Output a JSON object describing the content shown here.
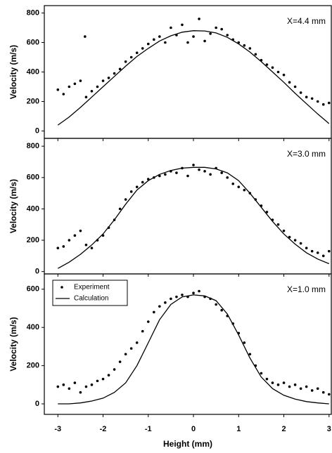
{
  "chart_data": [
    {
      "type": "scatter",
      "annotation": "X=4.4 mm",
      "ylabel": "Velocity (m/s)",
      "xlim": [
        -3.3,
        3.05
      ],
      "xticks": [
        -3,
        -2,
        -1,
        0,
        1,
        2,
        3
      ],
      "ylim": [
        -50,
        850
      ],
      "yticks": [
        0,
        200,
        400,
        600,
        800
      ],
      "series": [
        {
          "color": "#000000",
          "marker": "dot",
          "x": [
            -3,
            -2.875,
            -2.75,
            -2.625,
            -2.5,
            -2.375,
            -2.25,
            -2.125,
            -2,
            -1.875,
            -1.75,
            -1.625,
            -1.5,
            -1.375,
            -1.25,
            -1.125,
            -1,
            -0.875,
            -0.75,
            -0.625,
            -0.5,
            -0.375,
            -0.25,
            -0.125,
            0,
            0.125,
            0.25,
            0.375,
            0.5,
            0.625,
            0.75,
            0.875,
            1,
            1.125,
            1.25,
            1.375,
            1.5,
            1.625,
            1.75,
            1.875,
            2,
            2.125,
            2.25,
            2.375,
            2.5,
            2.625,
            2.75,
            2.875,
            3,
            -2.4
          ],
          "values": [
            280,
            250,
            300,
            320,
            340,
            230,
            270,
            300,
            340,
            360,
            390,
            420,
            470,
            500,
            530,
            560,
            590,
            620,
            640,
            600,
            700,
            650,
            720,
            600,
            640,
            760,
            610,
            660,
            700,
            690,
            650,
            620,
            600,
            580,
            560,
            520,
            480,
            450,
            430,
            400,
            380,
            330,
            300,
            260,
            230,
            220,
            200,
            180,
            190,
            640
          ]
        },
        {
          "color": "#000000",
          "marker": "line",
          "x": [
            -3,
            -2.75,
            -2.5,
            -2.25,
            -2,
            -1.75,
            -1.5,
            -1.25,
            -1,
            -0.75,
            -0.5,
            -0.25,
            0,
            0.25,
            0.5,
            0.75,
            1,
            1.25,
            1.5,
            1.75,
            2,
            2.25,
            2.5,
            2.75,
            3
          ],
          "values": [
            40,
            95,
            160,
            230,
            300,
            370,
            440,
            505,
            560,
            610,
            645,
            670,
            680,
            678,
            665,
            635,
            590,
            535,
            470,
            400,
            330,
            255,
            185,
            115,
            50
          ]
        }
      ]
    },
    {
      "type": "scatter",
      "annotation": "X=3.0 mm",
      "ylabel": "Velocity (m/s)",
      "xlim": [
        -3.3,
        3.05
      ],
      "xticks": [
        -3,
        -2,
        -1,
        0,
        1,
        2,
        3
      ],
      "ylim": [
        -15,
        850
      ],
      "yticks": [
        0,
        200,
        400,
        600,
        800
      ],
      "series": [
        {
          "color": "#000000",
          "marker": "dot",
          "x": [
            -3,
            -2.875,
            -2.75,
            -2.625,
            -2.5,
            -2.375,
            -2.25,
            -2.125,
            -2,
            -1.875,
            -1.75,
            -1.625,
            -1.5,
            -1.375,
            -1.25,
            -1.125,
            -1,
            -0.875,
            -0.75,
            -0.625,
            -0.5,
            -0.375,
            -0.25,
            -0.125,
            0,
            0.125,
            0.25,
            0.375,
            0.5,
            0.625,
            0.75,
            0.875,
            1,
            1.125,
            1.25,
            1.375,
            1.5,
            1.625,
            1.75,
            1.875,
            2,
            2.125,
            2.25,
            2.375,
            2.5,
            2.625,
            2.75,
            2.875,
            3
          ],
          "values": [
            150,
            160,
            200,
            230,
            260,
            170,
            150,
            200,
            230,
            280,
            330,
            400,
            460,
            510,
            540,
            570,
            590,
            600,
            610,
            620,
            640,
            630,
            660,
            610,
            680,
            650,
            640,
            620,
            660,
            630,
            600,
            560,
            540,
            520,
            500,
            460,
            420,
            380,
            330,
            300,
            260,
            220,
            200,
            180,
            150,
            130,
            120,
            100,
            130
          ]
        },
        {
          "color": "#000000",
          "marker": "line",
          "x": [
            -3,
            -2.75,
            -2.5,
            -2.25,
            -2,
            -1.75,
            -1.5,
            -1.25,
            -1,
            -0.75,
            -0.5,
            -0.25,
            0,
            0.25,
            0.5,
            0.75,
            1,
            1.25,
            1.5,
            1.75,
            2,
            2.25,
            2.5,
            2.75,
            3
          ],
          "values": [
            20,
            60,
            110,
            170,
            240,
            330,
            430,
            520,
            580,
            620,
            645,
            660,
            665,
            665,
            655,
            630,
            580,
            500,
            410,
            320,
            240,
            175,
            120,
            80,
            50
          ]
        }
      ]
    },
    {
      "type": "scatter",
      "annotation": "X=1.0 mm",
      "ylabel": "Velocity (m/s)",
      "xlabel": "Height (mm)",
      "xlim": [
        -3.3,
        3.05
      ],
      "xticks": [
        -3,
        -2,
        -1,
        0,
        1,
        2,
        3
      ],
      "ylim": [
        -55,
        680
      ],
      "yticks": [
        0,
        200,
        400,
        600
      ],
      "legend": "top-left",
      "series": [
        {
          "name": "Experiment",
          "color": "#000000",
          "marker": "dot",
          "x": [
            -3,
            -2.875,
            -2.75,
            -2.625,
            -2.5,
            -2.375,
            -2.25,
            -2.125,
            -2,
            -1.875,
            -1.75,
            -1.625,
            -1.5,
            -1.375,
            -1.25,
            -1.125,
            -1,
            -0.875,
            -0.75,
            -0.625,
            -0.5,
            -0.375,
            -0.25,
            -0.125,
            0,
            0.125,
            0.25,
            0.375,
            0.5,
            0.625,
            0.75,
            0.875,
            1,
            1.125,
            1.25,
            1.375,
            1.5,
            1.625,
            1.75,
            1.875,
            2,
            2.125,
            2.25,
            2.375,
            2.5,
            2.625,
            2.75,
            2.875,
            3
          ],
          "values": [
            90,
            100,
            80,
            110,
            60,
            90,
            100,
            120,
            130,
            150,
            180,
            220,
            260,
            290,
            320,
            380,
            430,
            480,
            510,
            530,
            550,
            560,
            570,
            560,
            580,
            590,
            560,
            550,
            520,
            490,
            460,
            420,
            370,
            320,
            260,
            200,
            160,
            130,
            110,
            100,
            110,
            90,
            100,
            80,
            90,
            70,
            80,
            60,
            50
          ]
        },
        {
          "name": "Calculation",
          "color": "#000000",
          "marker": "line",
          "x": [
            -3,
            -2.75,
            -2.5,
            -2.25,
            -2,
            -1.75,
            -1.5,
            -1.25,
            -1,
            -0.75,
            -0.5,
            -0.25,
            0,
            0.25,
            0.5,
            0.75,
            1,
            1.25,
            1.5,
            1.75,
            2,
            2.25,
            2.5,
            2.75,
            3
          ],
          "values": [
            0,
            0,
            5,
            15,
            30,
            60,
            110,
            200,
            320,
            440,
            520,
            560,
            570,
            565,
            540,
            470,
            360,
            240,
            140,
            80,
            45,
            25,
            12,
            5,
            0
          ]
        }
      ]
    }
  ]
}
